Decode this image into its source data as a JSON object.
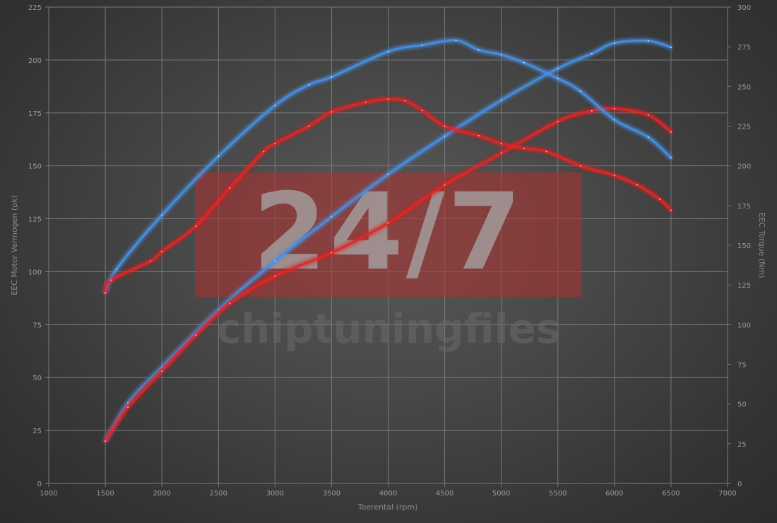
{
  "watermark": {
    "logo_text": "24/7",
    "brand_text": "chiptuningfiles",
    "logo_color": "#b03030"
  },
  "chart_data": {
    "type": "line",
    "title": "",
    "xlabel": "Toerental (rpm)",
    "ylabel_left": "EEC Motor Vermogen (pk)",
    "ylabel_right": "EEC Torque (Nm)",
    "xlim": [
      1000,
      7000
    ],
    "ylim_left": [
      0,
      225
    ],
    "ylim_right": [
      0,
      300
    ],
    "x_ticks": [
      1000,
      1500,
      2000,
      2500,
      3000,
      3500,
      4000,
      4500,
      5000,
      5500,
      6000,
      6500,
      7000
    ],
    "y_ticks_left": [
      0,
      25,
      50,
      75,
      100,
      125,
      150,
      175,
      200,
      225
    ],
    "y_ticks_right": [
      0,
      25,
      50,
      75,
      100,
      125,
      150,
      175,
      200,
      225,
      250,
      275,
      300
    ],
    "grid": true,
    "series": [
      {
        "axis": "left",
        "color": "#4a8fe0",
        "x": [
          1500,
          1700,
          2000,
          2500,
          3000,
          3500,
          4000,
          4500,
          5000,
          5500,
          5800,
          6000,
          6300,
          6500
        ],
        "y": [
          20,
          38,
          55,
          82,
          105,
          126,
          146,
          164,
          181,
          196,
          203,
          208,
          209,
          206
        ]
      },
      {
        "axis": "left",
        "color": "#e02828",
        "x": [
          1500,
          1700,
          2000,
          2300,
          2600,
          3000,
          3500,
          4000,
          4500,
          5000,
          5500,
          5800,
          6000,
          6300,
          6500
        ],
        "y": [
          20,
          36,
          53,
          70,
          85,
          98,
          109,
          123,
          141,
          156,
          171,
          176,
          177,
          174,
          166
        ]
      },
      {
        "axis": "right",
        "color": "#4a8fe0",
        "x": [
          1500,
          1600,
          2000,
          2500,
          3000,
          3300,
          3500,
          4000,
          4300,
          4600,
          4800,
          5000,
          5200,
          5500,
          5700,
          6000,
          6300,
          6500
        ],
        "y": [
          120,
          135,
          169,
          206,
          238,
          251,
          256,
          272,
          276,
          279,
          273,
          270,
          265,
          255,
          247,
          229,
          218,
          205
        ]
      },
      {
        "axis": "right",
        "color": "#e02828",
        "x": [
          1500,
          1550,
          1900,
          2000,
          2300,
          2600,
          2900,
          3000,
          3300,
          3500,
          3800,
          4000,
          4150,
          4300,
          4500,
          4800,
          5000,
          5200,
          5400,
          5700,
          6000,
          6200,
          6400,
          6500
        ],
        "y": [
          120,
          128,
          140,
          146,
          162,
          186,
          209,
          214,
          225,
          234,
          240,
          242,
          241,
          235,
          225,
          219,
          214,
          211,
          209,
          200,
          194,
          188,
          179,
          172
        ]
      }
    ]
  }
}
